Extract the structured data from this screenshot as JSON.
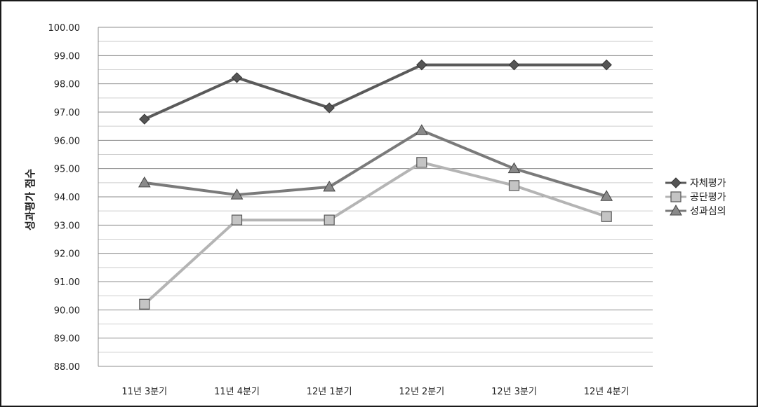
{
  "chart_data": {
    "type": "line",
    "title": "",
    "xlabel": "",
    "ylabel": "성과평가 점수",
    "ylim": [
      88,
      100
    ],
    "ytick_step": 1,
    "ytick_decimals": 2,
    "grid": "horizontal",
    "legend_position": "right",
    "categories": [
      "11년 3분기",
      "11년 4분기",
      "12년 1분기",
      "12년 2분기",
      "12년 3분기",
      "12년 4분기"
    ],
    "series": [
      {
        "name": "자체평가",
        "values": [
          96.75,
          98.22,
          97.15,
          98.67,
          98.67,
          98.67
        ],
        "color": "#5a5a5a",
        "marker": "diamond"
      },
      {
        "name": "공단평가",
        "values": [
          90.2,
          93.18,
          93.18,
          95.22,
          94.4,
          93.3
        ],
        "color": "#b4b4b4",
        "marker": "square"
      },
      {
        "name": "성과심의",
        "values": [
          94.5,
          94.07,
          94.35,
          96.35,
          95.0,
          94.02
        ],
        "color": "#7a7a7a",
        "marker": "triangle"
      }
    ]
  }
}
